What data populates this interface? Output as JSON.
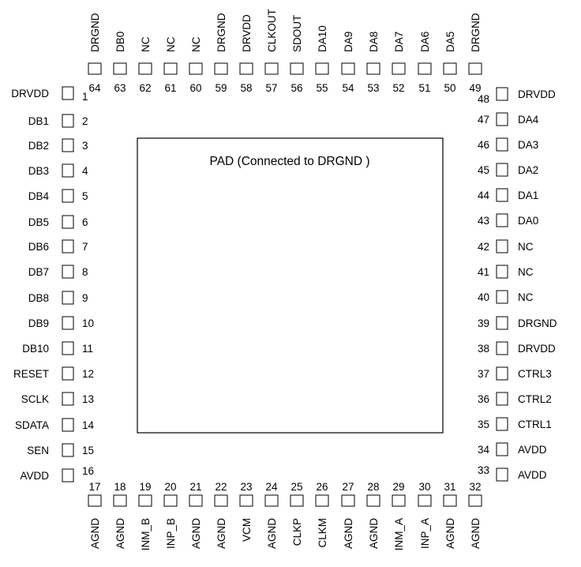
{
  "pad_label": "PAD (Connected to DRGND )",
  "pins_left": [
    {
      "num": "1",
      "name": "DRVDD"
    },
    {
      "num": "2",
      "name": "DB1"
    },
    {
      "num": "3",
      "name": "DB2"
    },
    {
      "num": "4",
      "name": "DB3"
    },
    {
      "num": "5",
      "name": "DB4"
    },
    {
      "num": "6",
      "name": "DB5"
    },
    {
      "num": "7",
      "name": "DB6"
    },
    {
      "num": "8",
      "name": "DB7"
    },
    {
      "num": "9",
      "name": "DB8"
    },
    {
      "num": "10",
      "name": "DB9"
    },
    {
      "num": "11",
      "name": "DB10"
    },
    {
      "num": "12",
      "name": "RESET"
    },
    {
      "num": "13",
      "name": "SCLK"
    },
    {
      "num": "14",
      "name": "SDATA"
    },
    {
      "num": "15",
      "name": "SEN"
    },
    {
      "num": "16",
      "name": "AVDD"
    }
  ],
  "pins_bottom": [
    {
      "num": "17",
      "name": "AGND"
    },
    {
      "num": "18",
      "name": "AGND"
    },
    {
      "num": "19",
      "name": "INM_B"
    },
    {
      "num": "20",
      "name": "INP_B"
    },
    {
      "num": "21",
      "name": "AGND"
    },
    {
      "num": "22",
      "name": "AGND"
    },
    {
      "num": "23",
      "name": "VCM"
    },
    {
      "num": "24",
      "name": "AGND"
    },
    {
      "num": "25",
      "name": "CLKP"
    },
    {
      "num": "26",
      "name": "CLKM"
    },
    {
      "num": "27",
      "name": "AGND"
    },
    {
      "num": "28",
      "name": "AGND"
    },
    {
      "num": "29",
      "name": "INM_A"
    },
    {
      "num": "30",
      "name": "INP_A"
    },
    {
      "num": "31",
      "name": "AGND"
    },
    {
      "num": "32",
      "name": "AGND"
    }
  ],
  "pins_right": [
    {
      "num": "33",
      "name": "AVDD"
    },
    {
      "num": "34",
      "name": "AVDD"
    },
    {
      "num": "35",
      "name": "CTRL1"
    },
    {
      "num": "36",
      "name": "CTRL2"
    },
    {
      "num": "37",
      "name": "CTRL3"
    },
    {
      "num": "38",
      "name": "DRVDD"
    },
    {
      "num": "39",
      "name": "DRGND"
    },
    {
      "num": "40",
      "name": "NC"
    },
    {
      "num": "41",
      "name": "NC"
    },
    {
      "num": "42",
      "name": "NC"
    },
    {
      "num": "43",
      "name": "DA0"
    },
    {
      "num": "44",
      "name": "DA1"
    },
    {
      "num": "45",
      "name": "DA2"
    },
    {
      "num": "46",
      "name": "DA3"
    },
    {
      "num": "47",
      "name": "DA4"
    },
    {
      "num": "48",
      "name": "DRVDD"
    }
  ],
  "pins_top": [
    {
      "num": "49",
      "name": "DRGND"
    },
    {
      "num": "50",
      "name": "DA5"
    },
    {
      "num": "51",
      "name": "DA6"
    },
    {
      "num": "52",
      "name": "DA7"
    },
    {
      "num": "53",
      "name": "DA8"
    },
    {
      "num": "54",
      "name": "DA9"
    },
    {
      "num": "55",
      "name": "DA10"
    },
    {
      "num": "56",
      "name": "SDOUT"
    },
    {
      "num": "57",
      "name": "CLKOUT"
    },
    {
      "num": "58",
      "name": "DRVDD"
    },
    {
      "num": "59",
      "name": "DRGND"
    },
    {
      "num": "60",
      "name": "NC"
    },
    {
      "num": "61",
      "name": "NC"
    },
    {
      "num": "62",
      "name": "NC"
    },
    {
      "num": "63",
      "name": "DB0"
    },
    {
      "num": "64",
      "name": "DRGND"
    }
  ]
}
